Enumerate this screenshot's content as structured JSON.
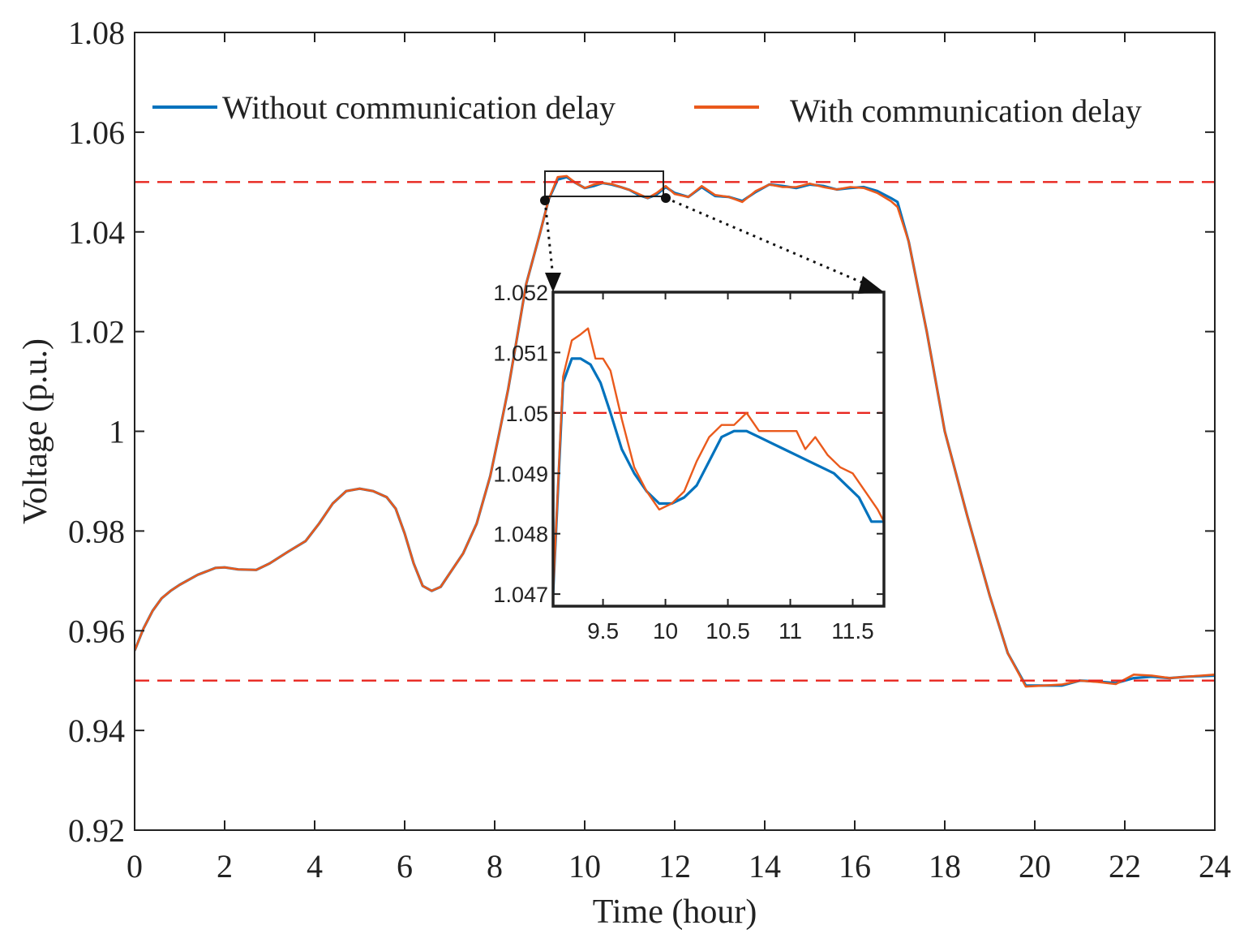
{
  "chart_data": [
    {
      "type": "line",
      "title": "",
      "xlabel": "Time (hour)",
      "ylabel": "Voltage  (p.u.)",
      "xlim": [
        0,
        24
      ],
      "ylim": [
        0.92,
        1.08
      ],
      "xticks": [
        "0",
        "2",
        "4",
        "6",
        "8",
        "10",
        "12",
        "14",
        "16",
        "18",
        "20",
        "22",
        "24"
      ],
      "yticks": [
        "0.92",
        "0.94",
        "0.96",
        "0.98",
        "1",
        "1.02",
        "1.04",
        "1.06",
        "1.08"
      ],
      "grid": false,
      "legend_position": "top",
      "reference_lines": [
        {
          "y": 1.05,
          "style": "dashed",
          "color": "#e8261f"
        },
        {
          "y": 0.95,
          "style": "dashed",
          "color": "#e8261f"
        }
      ],
      "series": [
        {
          "name": "Without communication delay",
          "color": "#0072bd",
          "x": [
            0,
            0.2,
            0.4,
            0.6,
            0.8,
            1,
            1.4,
            1.8,
            2.0,
            2.3,
            2.7,
            3.0,
            3.4,
            3.8,
            4.1,
            4.4,
            4.7,
            5.0,
            5.3,
            5.6,
            5.8,
            6.0,
            6.2,
            6.4,
            6.6,
            6.8,
            7.0,
            7.3,
            7.6,
            7.9,
            8.1,
            8.3,
            8.5,
            8.7,
            9.0,
            9.2,
            9.4,
            9.6,
            9.8,
            10.0,
            10.2,
            10.4,
            10.6,
            10.8,
            11.0,
            11.2,
            11.4,
            11.6,
            11.8,
            12.0,
            12.3,
            12.6,
            12.9,
            13.2,
            13.5,
            13.8,
            14.1,
            14.4,
            14.7,
            15.0,
            15.3,
            15.6,
            15.9,
            16.2,
            16.5,
            16.8,
            16.95,
            17.2,
            17.6,
            18.0,
            18.5,
            19.0,
            19.4,
            19.8,
            20.2,
            20.6,
            21.0,
            21.4,
            21.8,
            22.2,
            22.6,
            23.0,
            23.4,
            24.0
          ],
          "y": [
            0.956,
            0.9605,
            0.964,
            0.9665,
            0.968,
            0.9692,
            0.9712,
            0.9726,
            0.9727,
            0.9723,
            0.9722,
            0.9735,
            0.9758,
            0.978,
            0.9815,
            0.9855,
            0.988,
            0.9885,
            0.988,
            0.9868,
            0.9845,
            0.9795,
            0.9735,
            0.969,
            0.968,
            0.9688,
            0.9715,
            0.9755,
            0.9815,
            0.991,
            0.9995,
            1.0085,
            1.019,
            1.0295,
            1.0395,
            1.0465,
            1.0505,
            1.051,
            1.0498,
            1.0488,
            1.0492,
            1.0498,
            1.0495,
            1.049,
            1.0484,
            1.0474,
            1.0468,
            1.0475,
            1.049,
            1.0478,
            1.047,
            1.049,
            1.0472,
            1.047,
            1.0462,
            1.048,
            1.0495,
            1.0492,
            1.0488,
            1.0495,
            1.0492,
            1.0485,
            1.0488,
            1.049,
            1.0482,
            1.0468,
            1.046,
            1.038,
            1.02,
            1.0,
            0.983,
            0.967,
            0.9555,
            0.949,
            0.949,
            0.949,
            0.95,
            0.9498,
            0.9495,
            0.9505,
            0.9508,
            0.9505,
            0.9508,
            0.951
          ]
        },
        {
          "name": "With communication delay",
          "color": "#ea5a1c",
          "x": [
            0,
            0.2,
            0.4,
            0.6,
            0.8,
            1,
            1.4,
            1.8,
            2.0,
            2.3,
            2.7,
            3.0,
            3.4,
            3.8,
            4.1,
            4.4,
            4.7,
            5.0,
            5.3,
            5.6,
            5.8,
            6.0,
            6.2,
            6.4,
            6.6,
            6.8,
            7.0,
            7.3,
            7.6,
            7.9,
            8.1,
            8.3,
            8.5,
            8.7,
            9.0,
            9.2,
            9.4,
            9.6,
            9.8,
            10.0,
            10.2,
            10.4,
            10.6,
            10.8,
            11.0,
            11.2,
            11.4,
            11.6,
            11.8,
            12.0,
            12.3,
            12.6,
            12.9,
            13.2,
            13.5,
            13.8,
            14.1,
            14.4,
            14.7,
            15.0,
            15.3,
            15.6,
            15.9,
            16.2,
            16.5,
            16.8,
            16.95,
            17.2,
            17.6,
            18.0,
            18.5,
            19.0,
            19.4,
            19.8,
            20.2,
            20.6,
            21.0,
            21.4,
            21.8,
            22.2,
            22.6,
            23.0,
            23.4,
            24.0
          ],
          "y": [
            0.956,
            0.9605,
            0.964,
            0.9665,
            0.968,
            0.9692,
            0.9712,
            0.9726,
            0.9727,
            0.9723,
            0.9722,
            0.9735,
            0.9758,
            0.978,
            0.9815,
            0.9855,
            0.988,
            0.9885,
            0.988,
            0.9868,
            0.9845,
            0.9795,
            0.9735,
            0.969,
            0.968,
            0.9688,
            0.9715,
            0.9755,
            0.9815,
            0.991,
            0.9995,
            1.0085,
            1.019,
            1.0295,
            1.0395,
            1.0465,
            1.051,
            1.0512,
            1.0498,
            1.0488,
            1.0495,
            1.0498,
            1.0496,
            1.049,
            1.0484,
            1.0476,
            1.0468,
            1.0478,
            1.0492,
            1.0476,
            1.047,
            1.0492,
            1.0474,
            1.047,
            1.046,
            1.0482,
            1.0495,
            1.049,
            1.049,
            1.0497,
            1.049,
            1.0485,
            1.049,
            1.0488,
            1.0478,
            1.0462,
            1.045,
            1.038,
            1.02,
            1.0,
            0.983,
            0.967,
            0.9555,
            0.9488,
            0.949,
            0.9492,
            0.95,
            0.9497,
            0.9493,
            0.9512,
            0.951,
            0.9505,
            0.9508,
            0.9512
          ]
        }
      ]
    },
    {
      "type": "line",
      "title": "",
      "role": "inset",
      "xlim": [
        9.1,
        11.75
      ],
      "ylim": [
        1.0468,
        1.052
      ],
      "xticks": [
        "9.5",
        "10",
        "10.5",
        "11",
        "11.5"
      ],
      "yticks": [
        "1.047",
        "1.048",
        "1.049",
        "1.05",
        "1.051",
        "1.052"
      ],
      "reference_lines": [
        {
          "y": 1.05,
          "style": "dashed",
          "color": "#e8261f"
        }
      ],
      "series": [
        {
          "name": "Without communication delay",
          "color": "#0072bd",
          "x": [
            9.1,
            9.18,
            9.25,
            9.32,
            9.4,
            9.48,
            9.56,
            9.65,
            9.75,
            9.85,
            9.95,
            10.05,
            10.15,
            10.25,
            10.35,
            10.45,
            10.55,
            10.65,
            10.75,
            10.85,
            10.95,
            11.05,
            11.15,
            11.25,
            11.35,
            11.45,
            11.55,
            11.65,
            11.75
          ],
          "y": [
            1.047,
            1.0505,
            1.0509,
            1.0509,
            1.0508,
            1.0505,
            1.05,
            1.0494,
            1.049,
            1.0487,
            1.0485,
            1.0485,
            1.0486,
            1.0488,
            1.0492,
            1.0496,
            1.0497,
            1.0497,
            1.0496,
            1.0495,
            1.0494,
            1.0493,
            1.0492,
            1.0491,
            1.049,
            1.0488,
            1.0486,
            1.0482,
            1.0482
          ]
        },
        {
          "name": "With communication delay",
          "color": "#ea5a1c",
          "x": [
            9.1,
            9.18,
            9.25,
            9.32,
            9.38,
            9.44,
            9.5,
            9.56,
            9.65,
            9.75,
            9.85,
            9.95,
            10.05,
            10.15,
            10.25,
            10.35,
            10.45,
            10.55,
            10.65,
            10.75,
            10.85,
            10.95,
            11.05,
            11.12,
            11.2,
            11.3,
            11.4,
            11.5,
            11.6,
            11.7,
            11.75
          ],
          "y": [
            1.047,
            1.0506,
            1.0512,
            1.0513,
            1.0514,
            1.0509,
            1.0509,
            1.0507,
            1.0499,
            1.0491,
            1.0487,
            1.0484,
            1.0485,
            1.0487,
            1.0492,
            1.0496,
            1.0498,
            1.0498,
            1.05,
            1.0497,
            1.0497,
            1.0497,
            1.0497,
            1.0494,
            1.0496,
            1.0493,
            1.0491,
            1.049,
            1.0487,
            1.0484,
            1.0482
          ]
        }
      ]
    }
  ]
}
